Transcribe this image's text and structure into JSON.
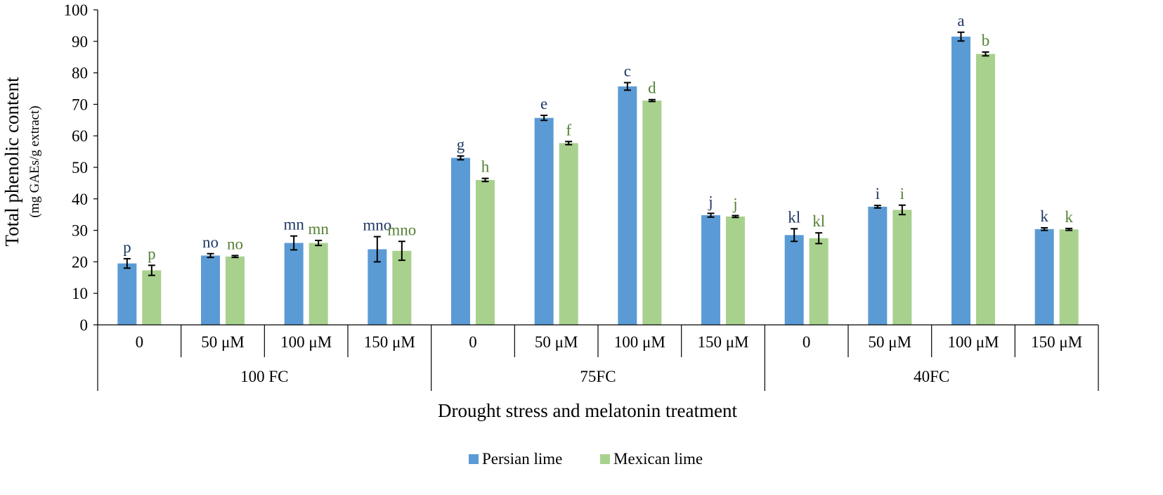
{
  "chart_data": {
    "type": "bar",
    "title": "",
    "ylabel": "Total phenolic content",
    "ylabel_sub": "(mg GAEs/g extract)",
    "xlabel": "Drought stress and melatonin treatment",
    "ylim": [
      0,
      100
    ],
    "yticks": [
      0,
      10,
      20,
      30,
      40,
      50,
      60,
      70,
      80,
      90,
      100
    ],
    "categories": [
      "0",
      "50 μM",
      "100 μM",
      "150 μM",
      "0",
      "50 μM",
      "100 μM",
      "150 μM",
      "0",
      "50 μM",
      "100 μM",
      "150 μM"
    ],
    "groups": [
      {
        "label": "100 FC",
        "count": 4
      },
      {
        "label": "75FC",
        "count": 4
      },
      {
        "label": "40FC",
        "count": 4
      }
    ],
    "series": [
      {
        "name": "Persian lime",
        "color": "#5B9BD5",
        "label_color": "#1F3864",
        "values": [
          19.5,
          22.0,
          26.0,
          24.0,
          53.0,
          65.7,
          75.7,
          34.8,
          28.5,
          37.5,
          91.5,
          30.4
        ],
        "errors": [
          1.5,
          0.6,
          2.2,
          4.0,
          0.6,
          0.8,
          1.2,
          0.6,
          2.0,
          0.4,
          1.4,
          0.4
        ],
        "letters": [
          "p",
          "no",
          "mn",
          "mno",
          "g",
          "e",
          "c",
          "j",
          "kl",
          "i",
          "a",
          "k"
        ]
      },
      {
        "name": "Mexican lime",
        "color": "#A9D18E",
        "label_color": "#548235",
        "values": [
          17.3,
          21.7,
          26.0,
          23.5,
          46.0,
          57.7,
          71.2,
          34.4,
          27.5,
          36.5,
          86.0,
          30.3
        ],
        "errors": [
          1.6,
          0.3,
          0.8,
          3.0,
          0.5,
          0.5,
          0.3,
          0.3,
          1.7,
          1.5,
          0.6,
          0.3
        ],
        "letters": [
          "p",
          "no",
          "mn",
          "mno",
          "h",
          "f",
          "d",
          "j",
          "kl",
          "i",
          "b",
          "k"
        ]
      }
    ],
    "legend_position": "bottom-center"
  }
}
